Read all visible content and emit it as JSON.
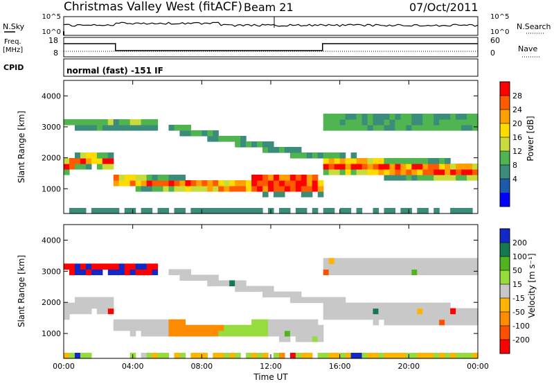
{
  "header": {
    "title": "Christmas Valley West (fitACF)",
    "beam": "Beam 21",
    "date": "07/Oct/2011"
  },
  "noise_panel": {
    "left_label": "N.Sky",
    "right_label": "N.Search",
    "left_ticks": [
      "10^5",
      "10^0"
    ],
    "right_ticks": [
      "10^5",
      "10^0"
    ]
  },
  "freq_panel": {
    "left_label_1": "Freq.",
    "left_label_2": "[MHz]",
    "right_label": "Nave",
    "left_ticks": [
      "18",
      "8"
    ],
    "right_ticks": [
      "60",
      "0"
    ]
  },
  "cpid": {
    "label": "CPID",
    "program": "normal (fast) -151 IF"
  },
  "chart_data": [
    {
      "type": "heatmap",
      "quantity": "power",
      "ylabel": "Slant Range [km]",
      "yticks": [
        1000,
        2000,
        3000,
        4000
      ],
      "ylim": [
        200,
        4500
      ],
      "colorbar_label": "Power [dB]",
      "colorbar_ticks": [
        "28",
        "24",
        "20",
        "16",
        "12",
        "8",
        "4"
      ],
      "colorbar_colors": [
        "#ff0000",
        "#ff5a00",
        "#ffa000",
        "#ffdc00",
        "#c8dc3c",
        "#50b450",
        "#3c8c7c",
        "#1e5aaa",
        "#0000ff"
      ],
      "clim": [
        0,
        30
      ]
    },
    {
      "type": "heatmap",
      "quantity": "velocity",
      "ylabel": "Slant Range [km]",
      "xlabel": "Time UT",
      "xticks": [
        "00:00",
        "04:00",
        "08:00",
        "12:00",
        "16:00",
        "20:00",
        "00:00"
      ],
      "xlim_hours": [
        0,
        24
      ],
      "yticks": [
        1000,
        2000,
        3000,
        4000
      ],
      "ylim": [
        200,
        4500
      ],
      "colorbar_label": "Velocity [m s⁻¹]",
      "colorbar_ticks": [
        "200",
        "100",
        "50",
        "15",
        "-15",
        "-50",
        "-100",
        "-200"
      ],
      "colorbar_colors": [
        "#1428c8",
        "#147850",
        "#50b41e",
        "#96dc3c",
        "#c8c8c8",
        "#ffb400",
        "#ff8c00",
        "#ff5000",
        "#ff0000"
      ],
      "clim": [
        -250,
        250
      ]
    }
  ]
}
